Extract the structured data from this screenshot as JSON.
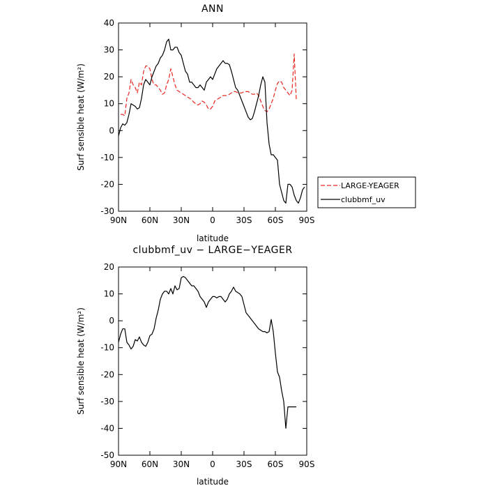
{
  "chart_data": [
    {
      "type": "line",
      "title": "ANN",
      "xlabel": "latitude",
      "ylabel": "Surf sensible heat (W/m²)",
      "xlim": [
        90,
        -90
      ],
      "ylim": [
        -30,
        40
      ],
      "x_ticks": [
        90,
        60,
        30,
        0,
        -30,
        -60,
        -90
      ],
      "x_tick_labels": [
        "90N",
        "60N",
        "30N",
        "0",
        "30S",
        "60S",
        "90S"
      ],
      "y_ticks": [
        -30,
        -20,
        -10,
        0,
        10,
        20,
        30,
        40
      ],
      "y_tick_labels": [
        "-30",
        "-20",
        "-10",
        "0",
        "10",
        "20",
        "30",
        "40"
      ],
      "legend": {
        "placement": "right",
        "entries": [
          "LARGE-YEAGER",
          "clubbmf_uv"
        ]
      },
      "series": [
        {
          "name": "LARGE-YEAGER",
          "color": "#e8261e",
          "dash": "dashed",
          "x": [
            88,
            86,
            84,
            82,
            80,
            78,
            76,
            74,
            72,
            70,
            68,
            66,
            64,
            62,
            60,
            58,
            56,
            54,
            52,
            50,
            48,
            46,
            44,
            42,
            40,
            38,
            36,
            34,
            32,
            30,
            28,
            26,
            24,
            22,
            20,
            18,
            16,
            14,
            12,
            10,
            8,
            6,
            4,
            2,
            0,
            -2,
            -4,
            -6,
            -8,
            -10,
            -12,
            -14,
            -16,
            -18,
            -20,
            -22,
            -24,
            -26,
            -28,
            -30,
            -32,
            -34,
            -36,
            -38,
            -40,
            -42,
            -44,
            -46,
            -48,
            -50,
            -52,
            -54,
            -56,
            -58,
            -60,
            -62,
            -64,
            -66,
            -68,
            -70,
            -72,
            -74,
            -76,
            -78,
            -80
          ],
          "y": [
            6,
            6,
            5.5,
            12,
            14,
            19,
            17,
            16,
            14,
            18,
            17,
            22,
            24,
            24,
            23,
            19,
            17,
            17,
            16,
            15,
            13.5,
            14,
            17,
            19,
            23,
            20,
            17,
            15,
            14.5,
            14,
            13.5,
            13,
            12.5,
            12,
            11.5,
            10.5,
            10,
            9.5,
            10,
            11,
            10.5,
            9.5,
            8,
            8,
            9,
            11,
            11.5,
            12,
            12.5,
            13,
            13,
            13,
            13.5,
            14,
            14.5,
            14.5,
            14,
            14,
            14,
            14.5,
            14.5,
            14.5,
            14,
            13.5,
            13.5,
            14,
            13,
            11,
            9,
            7.5,
            7,
            8,
            10,
            12,
            15,
            17.5,
            18.5,
            18,
            16,
            15,
            14,
            13,
            15,
            28.5,
            11.5
          ]
        },
        {
          "name": "clubbmf_uv",
          "color": "#000000",
          "dash": "solid",
          "x": [
            90,
            88,
            86,
            84,
            82,
            80,
            78,
            76,
            74,
            72,
            70,
            68,
            66,
            64,
            62,
            60,
            58,
            56,
            54,
            52,
            50,
            48,
            46,
            44,
            42,
            40,
            38,
            36,
            34,
            32,
            30,
            28,
            26,
            24,
            22,
            20,
            18,
            16,
            14,
            12,
            10,
            8,
            6,
            4,
            2,
            0,
            -2,
            -4,
            -6,
            -8,
            -10,
            -12,
            -14,
            -16,
            -18,
            -20,
            -22,
            -24,
            -26,
            -28,
            -30,
            -32,
            -34,
            -36,
            -38,
            -40,
            -42,
            -44,
            -46,
            -48,
            -50,
            -52,
            -54,
            -56,
            -58,
            -60,
            -62,
            -64,
            -66,
            -68,
            -70,
            -72,
            -74,
            -76,
            -78,
            -80,
            -82,
            -84,
            -86,
            -88
          ],
          "y": [
            -2,
            1,
            2.5,
            2,
            3,
            6,
            10,
            9.5,
            9,
            8,
            8.5,
            12,
            17,
            19,
            18,
            17,
            20,
            22,
            24,
            25,
            27,
            28,
            30,
            33,
            34,
            30,
            30,
            31,
            31,
            29,
            28,
            25,
            22,
            21,
            18,
            18,
            17,
            16,
            16,
            17,
            16,
            15,
            18,
            19,
            20,
            19,
            21,
            23,
            24,
            25,
            26,
            25,
            25,
            24.5,
            22,
            19,
            16,
            15,
            13,
            11,
            9,
            7,
            5,
            4,
            4.5,
            7,
            10,
            13,
            17,
            20,
            18,
            3,
            -5,
            -9,
            -9,
            -10,
            -11,
            -20,
            -23,
            -26,
            -27,
            -20,
            -20,
            -21,
            -24,
            -26,
            -27,
            -25,
            -22,
            -21
          ]
        }
      ]
    },
    {
      "type": "line",
      "title": "clubbmf_uv − LARGE−YEAGER",
      "xlabel": "latitude",
      "ylabel": "Surf sensible heat (W/m²)",
      "xlim": [
        90,
        -90
      ],
      "ylim": [
        -50,
        20
      ],
      "x_ticks": [
        90,
        60,
        30,
        0,
        -30,
        -60,
        -90
      ],
      "x_tick_labels": [
        "90N",
        "60N",
        "30N",
        "0",
        "30S",
        "60S",
        "90S"
      ],
      "y_ticks": [
        -50,
        -40,
        -30,
        -20,
        -10,
        0,
        10,
        20
      ],
      "y_tick_labels": [
        "-50",
        "-40",
        "-30",
        "-20",
        "-10",
        "0",
        "10",
        "20"
      ],
      "series": [
        {
          "color": "#000000",
          "dash": "solid",
          "x": [
            90,
            88,
            86,
            84,
            82,
            80,
            78,
            76,
            74,
            72,
            70,
            68,
            66,
            64,
            62,
            60,
            58,
            56,
            54,
            52,
            50,
            48,
            46,
            44,
            42,
            40,
            38,
            36,
            34,
            32,
            30,
            28,
            26,
            24,
            22,
            20,
            18,
            16,
            14,
            12,
            10,
            8,
            6,
            4,
            2,
            0,
            -2,
            -4,
            -6,
            -8,
            -10,
            -12,
            -14,
            -16,
            -18,
            -20,
            -22,
            -24,
            -26,
            -28,
            -30,
            -32,
            -34,
            -36,
            -38,
            -40,
            -42,
            -44,
            -46,
            -48,
            -50,
            -52,
            -54,
            -56,
            -58,
            -60,
            -62,
            -64,
            -66,
            -68,
            -70,
            -72,
            -74,
            -76,
            -78,
            -80
          ],
          "y": [
            -8,
            -5,
            -3,
            -3,
            -8,
            -9,
            -10.5,
            -9.5,
            -7,
            -7.5,
            -6,
            -8,
            -9,
            -9.5,
            -8,
            -5.5,
            -5,
            -3,
            1,
            4,
            8,
            10,
            11,
            11,
            10,
            12,
            10,
            13,
            11.5,
            12,
            16,
            16.5,
            16,
            15,
            14,
            13,
            13,
            12,
            11,
            9,
            8,
            7,
            5,
            7,
            8,
            9,
            9,
            8.5,
            9,
            9,
            8,
            7,
            8,
            10,
            11,
            12.5,
            11,
            10.5,
            10,
            9,
            6,
            3,
            2,
            1,
            0,
            -1,
            -2,
            -3,
            -3.5,
            -4,
            -4,
            -4.5,
            -4,
            0.5,
            -4,
            -12,
            -19,
            -21,
            -26,
            -30,
            -40,
            -32,
            -32,
            -32,
            -32,
            -32
          ]
        }
      ]
    }
  ]
}
